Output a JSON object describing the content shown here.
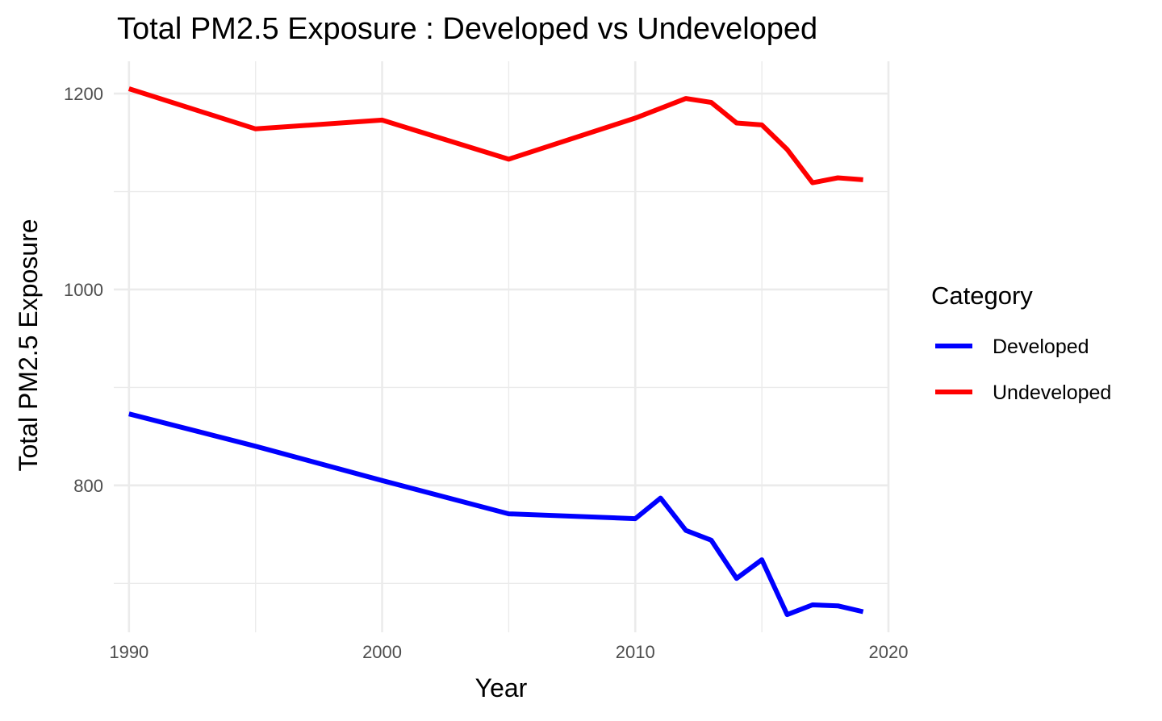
{
  "chart_data": {
    "type": "line",
    "title": "Total PM2.5 Exposure : Developed vs Undeveloped",
    "xlabel": "Year",
    "ylabel": "Total PM2.5 Exposure",
    "xlim": [
      1989.4,
      2020.0
    ],
    "ylim": [
      650,
      1233
    ],
    "x_ticks": [
      1990,
      2000,
      2010,
      2020
    ],
    "x_minor_ticks": [
      1995,
      2005,
      2015
    ],
    "y_ticks": [
      800,
      1000,
      1200
    ],
    "y_minor_ticks": [
      700,
      900,
      1100
    ],
    "grid": true,
    "legend": {
      "title": "Category",
      "position": "right",
      "entries": [
        "Developed",
        "Undeveloped"
      ]
    },
    "series": [
      {
        "name": "Developed",
        "color": "#0000FF",
        "x": [
          1990,
          1995,
          2000,
          2005,
          2010,
          2011,
          2012,
          2013,
          2014,
          2015,
          2016,
          2017,
          2018,
          2019
        ],
        "y": [
          873,
          840,
          805,
          771,
          766,
          787,
          754,
          744,
          705,
          724,
          668,
          678,
          677,
          671
        ]
      },
      {
        "name": "Undeveloped",
        "color": "#FF0000",
        "x": [
          1990,
          1995,
          2000,
          2005,
          2010,
          2011,
          2012,
          2013,
          2014,
          2015,
          2016,
          2017,
          2018,
          2019
        ],
        "y": [
          1205,
          1164,
          1173,
          1133,
          1175,
          1185,
          1195,
          1191,
          1170,
          1168,
          1143,
          1109,
          1114,
          1112
        ]
      }
    ]
  }
}
